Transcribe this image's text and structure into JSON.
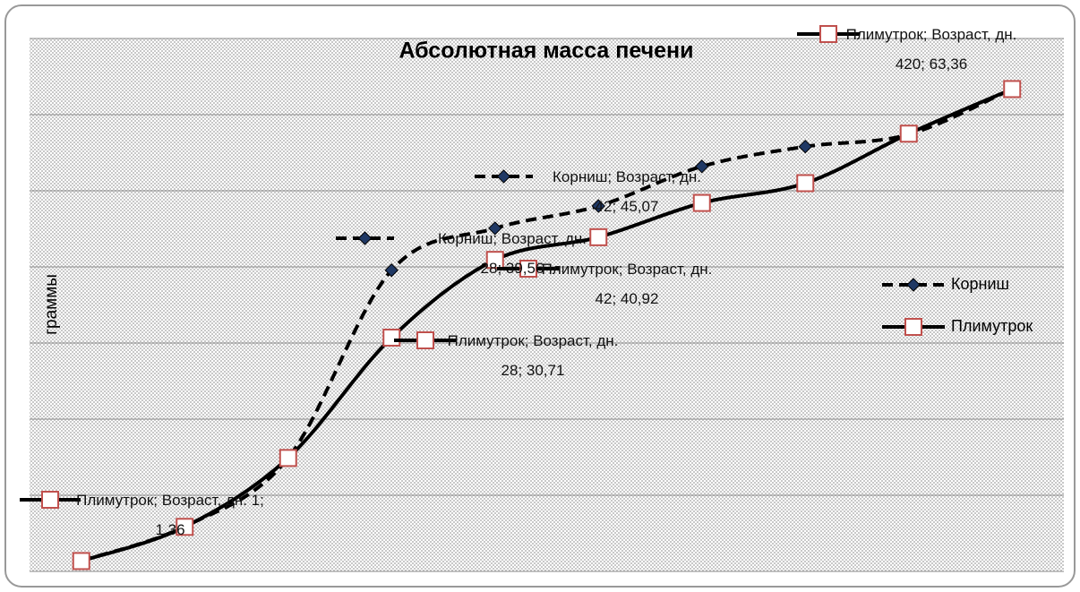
{
  "chart_data": {
    "type": "line",
    "title": "Абсолютная масса печени",
    "y_label": "граммы",
    "categories": [
      null,
      null,
      null,
      null,
      null,
      null,
      null,
      null,
      null,
      null
    ],
    "ylim": [
      0,
      70
    ],
    "yticks": [
      0,
      10,
      20,
      30,
      40,
      50,
      60,
      70
    ],
    "grid": true,
    "legend": "right",
    "series": [
      {
        "name": "Корниш",
        "color": "#000000",
        "dash": true,
        "marker": "diamond",
        "values": [
          1.4,
          5.9,
          14.9,
          39.56,
          45.07,
          48.0,
          53.2,
          55.8,
          57.4,
          63.4
        ],
        "value_labels": [
          null,
          null,
          null,
          "Корниш; Возраст, дн. 28; 39,56",
          "Корниш; Возраст, дн. 42; 45,07",
          null,
          null,
          null,
          null,
          null
        ]
      },
      {
        "name": "Плимутрок",
        "color": "#000000",
        "dash": false,
        "marker": "square",
        "values": [
          1.36,
          5.85,
          14.9,
          30.71,
          40.92,
          43.9,
          48.4,
          51.0,
          57.5,
          63.36
        ],
        "value_labels": [
          "Плимутрок; Возраст, дн. 1; 1,36",
          null,
          null,
          "Плимутрок; Возраст, дн. 28; 30,71",
          "Плимутрок; Возраст, дн. 42; 40,92",
          null,
          null,
          null,
          null,
          "Плимутрок; Возраст, дн. 420; 63,36"
        ]
      }
    ]
  }
}
